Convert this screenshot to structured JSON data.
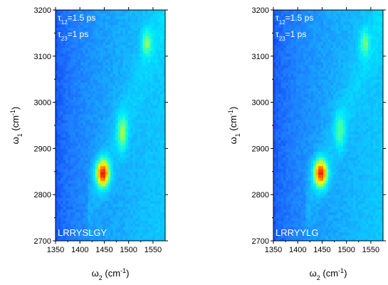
{
  "chart_data": [
    {
      "type": "heatmap",
      "title": "",
      "xlabel": {
        "main": "ω",
        "sub": "2",
        "unit_open": " (cm",
        "unit_sup": "-1",
        "unit_close": ")"
      },
      "ylabel": {
        "main": "ω",
        "sub": "1",
        "unit_open": " (cm",
        "unit_sup": "-1",
        "unit_close": ")"
      },
      "xlim": [
        1350,
        1575
      ],
      "ylim": [
        2700,
        3200
      ],
      "x_ticks": [
        1350,
        1400,
        1450,
        1500,
        1550
      ],
      "y_ticks": [
        2700,
        2800,
        2900,
        3000,
        3100,
        3200
      ],
      "annotations": {
        "tau12": {
          "symbol": "τ",
          "sub": "12",
          "value": "=1.5 ps"
        },
        "tau23": {
          "symbol": "τ",
          "sub": "23",
          "value": "=1 ps"
        },
        "sample": "LRRYSLGY"
      },
      "peaks": [
        {
          "x": 1447,
          "y": 2847,
          "intensity": 1.0
        },
        {
          "x": 1487,
          "y": 2935,
          "intensity": 0.55
        },
        {
          "x": 1537,
          "y": 3130,
          "intensity": 0.5
        }
      ],
      "colormap": [
        "#0000c8",
        "#0a3cf0",
        "#1e78ff",
        "#14b4ff",
        "#00e6ff",
        "#28ffc8",
        "#a0ff50",
        "#ffff00",
        "#ffb400",
        "#ff5000",
        "#e60000"
      ]
    },
    {
      "type": "heatmap",
      "title": "",
      "xlabel": {
        "main": "ω",
        "sub": "2",
        "unit_open": " (cm",
        "unit_sup": "-1",
        "unit_close": ")"
      },
      "ylabel": {
        "main": "ω",
        "sub": "1",
        "unit_open": " (cm",
        "unit_sup": "-1",
        "unit_close": ")"
      },
      "xlim": [
        1350,
        1575
      ],
      "ylim": [
        2700,
        3200
      ],
      "x_ticks": [
        1350,
        1400,
        1450,
        1500,
        1550
      ],
      "y_ticks": [
        2700,
        2800,
        2900,
        3000,
        3100,
        3200
      ],
      "annotations": {
        "tau12": {
          "symbol": "τ",
          "sub": "12",
          "value": "=1.5 ps"
        },
        "tau23": {
          "symbol": "τ",
          "sub": "23",
          "value": "=1 ps"
        },
        "sample": "LRRYYLG"
      },
      "peaks": [
        {
          "x": 1447,
          "y": 2847,
          "intensity": 1.0
        },
        {
          "x": 1487,
          "y": 2940,
          "intensity": 0.42
        },
        {
          "x": 1537,
          "y": 3130,
          "intensity": 0.45
        }
      ],
      "colormap": [
        "#0000c8",
        "#0a3cf0",
        "#1e78ff",
        "#14b4ff",
        "#00e6ff",
        "#28ffc8",
        "#a0ff50",
        "#ffff00",
        "#ffb400",
        "#ff5000",
        "#e60000"
      ]
    }
  ]
}
